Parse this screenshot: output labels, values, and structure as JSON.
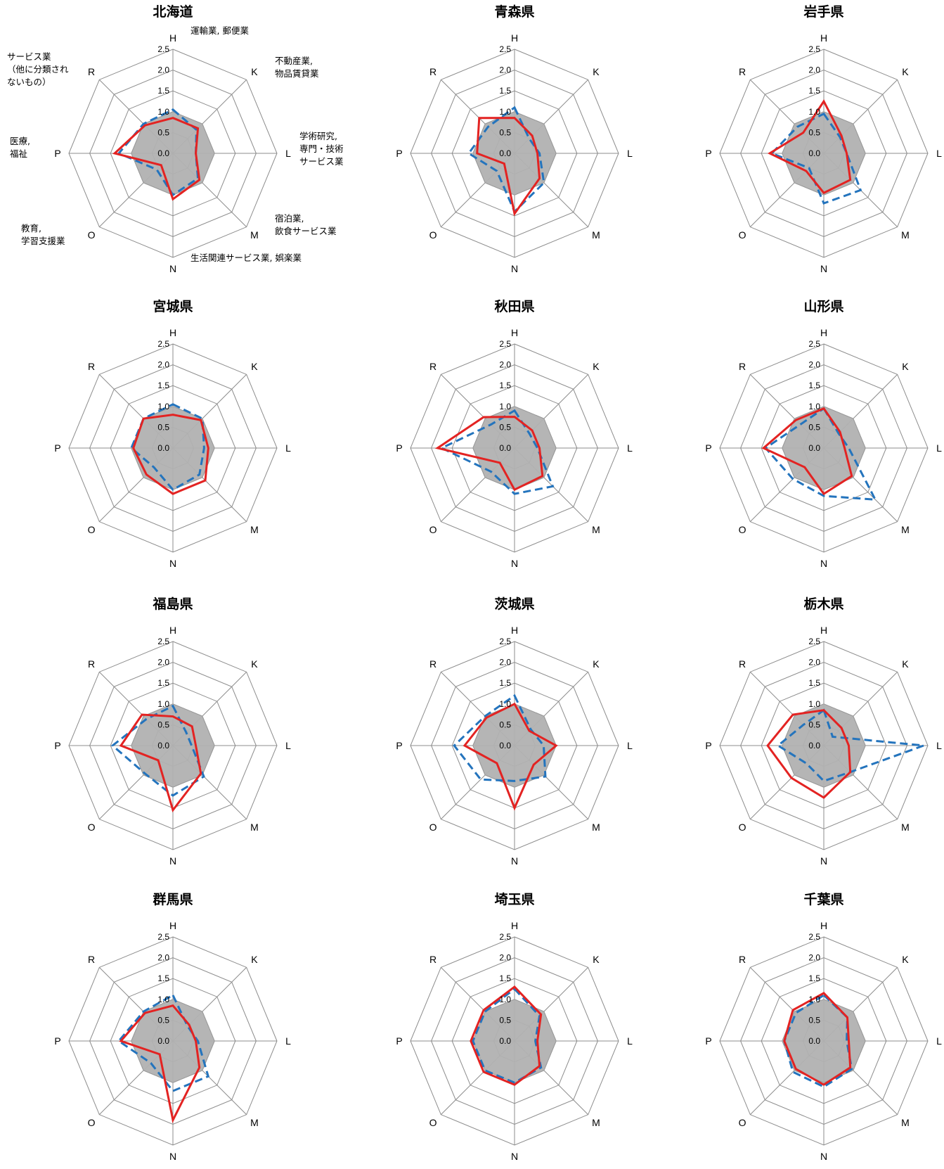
{
  "chart_data": [
    {
      "type": "radar",
      "title": "北海道",
      "categories": [
        "H",
        "K",
        "L",
        "M",
        "N",
        "O",
        "P",
        "R"
      ],
      "ticks": [
        "0.0",
        "0.5",
        "1.0",
        "1.5",
        "2.0",
        "2.5"
      ],
      "rlim": [
        0,
        2.5
      ],
      "category_notes": {
        "H": "運輸業, 郵便業",
        "K": "不動産業,\n物品賃貸業",
        "L": "学術研究,\n専門・技術\nサービス業",
        "M": "宿泊業,\n飲食サービス業",
        "N": "生活関連サービス業, 娯楽業",
        "O": "教育,\n学習支援業",
        "P": "医療,\n福祉",
        "R": "サービス業\n（他に分類され\nないもの）"
      },
      "series": [
        {
          "style": "red-solid",
          "values": [
            0.85,
            0.85,
            0.55,
            0.9,
            1.1,
            0.4,
            1.4,
            0.95
          ]
        },
        {
          "style": "blue-dashed",
          "values": [
            1.05,
            0.8,
            0.55,
            0.85,
            1.0,
            0.55,
            1.3,
            1.0
          ]
        },
        {
          "style": "grey-fill",
          "values": [
            1,
            1,
            1,
            1,
            1,
            1,
            1,
            1
          ]
        }
      ]
    },
    {
      "type": "radar",
      "title": "青森県",
      "categories": [
        "H",
        "K",
        "L",
        "M",
        "N",
        "O",
        "P",
        "R"
      ],
      "ticks": [
        "0.0",
        "0.5",
        "1.0",
        "1.5",
        "2.0",
        "2.5"
      ],
      "rlim": [
        0,
        2.5
      ],
      "series": [
        {
          "style": "red-solid",
          "values": [
            0.85,
            0.6,
            0.55,
            0.85,
            1.45,
            0.35,
            0.9,
            1.2
          ]
        },
        {
          "style": "blue-dashed",
          "values": [
            1.1,
            0.5,
            0.6,
            1.0,
            1.4,
            0.6,
            1.1,
            0.9
          ]
        },
        {
          "style": "grey-fill",
          "values": [
            1,
            1,
            1,
            1,
            1,
            1,
            1,
            1
          ]
        }
      ]
    },
    {
      "type": "radar",
      "title": "岩手県",
      "categories": [
        "H",
        "K",
        "L",
        "M",
        "N",
        "O",
        "P",
        "R"
      ],
      "ticks": [
        "0.0",
        "0.5",
        "1.0",
        "1.5",
        "2.0",
        "2.5"
      ],
      "rlim": [
        0,
        2.5
      ],
      "series": [
        {
          "style": "red-solid",
          "values": [
            1.25,
            0.6,
            0.55,
            0.9,
            0.95,
            0.6,
            1.3,
            0.7
          ]
        },
        {
          "style": "blue-dashed",
          "values": [
            0.95,
            0.55,
            0.55,
            1.25,
            1.2,
            0.5,
            1.25,
            0.9
          ]
        },
        {
          "style": "grey-fill",
          "values": [
            1,
            1,
            1,
            1,
            1,
            1,
            1,
            1
          ]
        }
      ]
    },
    {
      "type": "radar",
      "title": "宮城県",
      "categories": [
        "H",
        "K",
        "L",
        "M",
        "N",
        "O",
        "P",
        "R"
      ],
      "ticks": [
        "0.0",
        "0.5",
        "1.0",
        "1.5",
        "2.0",
        "2.5"
      ],
      "rlim": [
        0,
        2.5
      ],
      "series": [
        {
          "style": "red-solid",
          "values": [
            0.8,
            0.95,
            0.85,
            1.1,
            1.1,
            0.9,
            0.95,
            1.0
          ]
        },
        {
          "style": "blue-dashed",
          "values": [
            1.05,
            1.0,
            0.75,
            0.9,
            1.0,
            0.65,
            1.0,
            1.0
          ]
        },
        {
          "style": "grey-fill",
          "values": [
            1,
            1,
            1,
            1,
            1,
            1,
            1,
            1
          ]
        }
      ]
    },
    {
      "type": "radar",
      "title": "秋田県",
      "categories": [
        "H",
        "K",
        "L",
        "M",
        "N",
        "O",
        "P",
        "R"
      ],
      "ticks": [
        "0.0",
        "0.5",
        "1.0",
        "1.5",
        "2.0",
        "2.5"
      ],
      "rlim": [
        0,
        2.5
      ],
      "series": [
        {
          "style": "red-solid",
          "values": [
            0.75,
            0.6,
            0.6,
            0.95,
            1.0,
            0.5,
            1.85,
            1.05
          ]
        },
        {
          "style": "blue-dashed",
          "values": [
            0.9,
            0.5,
            0.55,
            1.3,
            1.1,
            0.8,
            1.75,
            0.8
          ]
        },
        {
          "style": "grey-fill",
          "values": [
            1,
            1,
            1,
            1,
            1,
            1,
            1,
            1
          ]
        }
      ]
    },
    {
      "type": "radar",
      "title": "山形県",
      "categories": [
        "H",
        "K",
        "L",
        "M",
        "N",
        "O",
        "P",
        "R"
      ],
      "ticks": [
        "0.0",
        "0.5",
        "1.0",
        "1.5",
        "2.0",
        "2.5"
      ],
      "rlim": [
        0,
        2.5
      ],
      "series": [
        {
          "style": "red-solid",
          "values": [
            0.95,
            0.55,
            0.5,
            0.95,
            1.1,
            0.65,
            1.45,
            0.95
          ]
        },
        {
          "style": "blue-dashed",
          "values": [
            0.95,
            0.5,
            0.6,
            1.75,
            1.15,
            1.05,
            1.4,
            0.8
          ]
        },
        {
          "style": "grey-fill",
          "values": [
            1,
            1,
            1,
            1,
            1,
            1,
            1,
            1
          ]
        }
      ]
    },
    {
      "type": "radar",
      "title": "福島県",
      "categories": [
        "H",
        "K",
        "L",
        "M",
        "N",
        "O",
        "P",
        "R"
      ],
      "ticks": [
        "0.0",
        "0.5",
        "1.0",
        "1.5",
        "2.0",
        "2.5"
      ],
      "rlim": [
        0,
        2.5
      ],
      "series": [
        {
          "style": "red-solid",
          "values": [
            0.7,
            0.65,
            0.55,
            0.95,
            1.55,
            0.5,
            1.25,
            1.05
          ]
        },
        {
          "style": "blue-dashed",
          "values": [
            0.95,
            0.45,
            0.45,
            1.05,
            1.2,
            0.95,
            1.45,
            0.9
          ]
        },
        {
          "style": "grey-fill",
          "values": [
            1,
            1,
            1,
            1,
            1,
            1,
            1,
            1
          ]
        }
      ]
    },
    {
      "type": "radar",
      "title": "茨城県",
      "categories": [
        "H",
        "K",
        "L",
        "M",
        "N",
        "O",
        "P",
        "R"
      ],
      "ticks": [
        "0.0",
        "0.5",
        "1.0",
        "1.5",
        "2.0",
        "2.5"
      ],
      "rlim": [
        0,
        2.5
      ],
      "series": [
        {
          "style": "red-solid",
          "values": [
            1.0,
            0.5,
            1.0,
            0.65,
            1.5,
            0.6,
            1.2,
            0.95
          ]
        },
        {
          "style": "blue-dashed",
          "values": [
            1.2,
            0.55,
            0.7,
            1.05,
            0.85,
            1.15,
            1.45,
            1.0
          ]
        },
        {
          "style": "grey-fill",
          "values": [
            1,
            1,
            1,
            1,
            1,
            1,
            1,
            1
          ]
        }
      ]
    },
    {
      "type": "radar",
      "title": "栃木県",
      "categories": [
        "H",
        "K",
        "L",
        "M",
        "N",
        "O",
        "P",
        "R"
      ],
      "ticks": [
        "0.0",
        "0.5",
        "1.0",
        "1.5",
        "2.0",
        "2.5"
      ],
      "rlim": [
        0,
        2.5
      ],
      "series": [
        {
          "style": "red-solid",
          "values": [
            0.85,
            0.6,
            0.6,
            0.9,
            1.25,
            1.1,
            1.35,
            1.05
          ]
        },
        {
          "style": "blue-dashed",
          "values": [
            0.85,
            0.3,
            2.4,
            0.9,
            0.85,
            0.6,
            1.1,
            0.7
          ]
        },
        {
          "style": "grey-fill",
          "values": [
            1,
            1,
            1,
            1,
            1,
            1,
            1,
            1
          ]
        }
      ]
    },
    {
      "type": "radar",
      "title": "群馬県",
      "categories": [
        "H",
        "K",
        "L",
        "M",
        "N",
        "O",
        "P",
        "R"
      ],
      "ticks": [
        "0.0",
        "0.5",
        "1.0",
        "1.5",
        "2.0",
        "2.5"
      ],
      "rlim": [
        0,
        2.5
      ],
      "series": [
        {
          "style": "red-solid",
          "values": [
            0.85,
            0.55,
            0.55,
            0.9,
            1.9,
            0.45,
            1.25,
            0.95
          ]
        },
        {
          "style": "blue-dashed",
          "values": [
            1.1,
            0.5,
            0.6,
            1.2,
            1.2,
            0.75,
            1.3,
            1.0
          ]
        },
        {
          "style": "grey-fill",
          "values": [
            1,
            1,
            1,
            1,
            1,
            1,
            1,
            1
          ]
        }
      ]
    },
    {
      "type": "radar",
      "title": "埼玉県",
      "categories": [
        "H",
        "K",
        "L",
        "M",
        "N",
        "O",
        "P",
        "R"
      ],
      "ticks": [
        "0.0",
        "0.5",
        "1.0",
        "1.5",
        "2.0",
        "2.5"
      ],
      "rlim": [
        0,
        2.5
      ],
      "series": [
        {
          "style": "red-solid",
          "values": [
            1.3,
            0.9,
            0.55,
            0.85,
            1.05,
            1.05,
            1.05,
            1.05
          ]
        },
        {
          "style": "blue-dashed",
          "values": [
            1.25,
            0.85,
            0.5,
            0.9,
            1.0,
            1.0,
            1.0,
            1.0
          ]
        },
        {
          "style": "grey-fill",
          "values": [
            1,
            1,
            1,
            1,
            1,
            1,
            1,
            1
          ]
        }
      ]
    },
    {
      "type": "radar",
      "title": "千葉県",
      "categories": [
        "H",
        "K",
        "L",
        "M",
        "N",
        "O",
        "P",
        "R"
      ],
      "ticks": [
        "0.0",
        "0.5",
        "1.0",
        "1.5",
        "2.0",
        "2.5"
      ],
      "rlim": [
        0,
        2.5
      ],
      "series": [
        {
          "style": "red-solid",
          "values": [
            1.15,
            0.8,
            0.6,
            0.9,
            1.05,
            0.95,
            0.95,
            1.05
          ]
        },
        {
          "style": "blue-dashed",
          "values": [
            1.1,
            0.8,
            0.55,
            0.95,
            1.1,
            1.05,
            0.95,
            0.95
          ]
        },
        {
          "style": "grey-fill",
          "values": [
            1,
            1,
            1,
            1,
            1,
            1,
            1,
            1
          ]
        }
      ]
    }
  ],
  "colors": {
    "red_series": "#e32322",
    "blue_series": "#2474bd",
    "grey_fill": "#b1b1b1",
    "grid": "#8c8c8c"
  }
}
